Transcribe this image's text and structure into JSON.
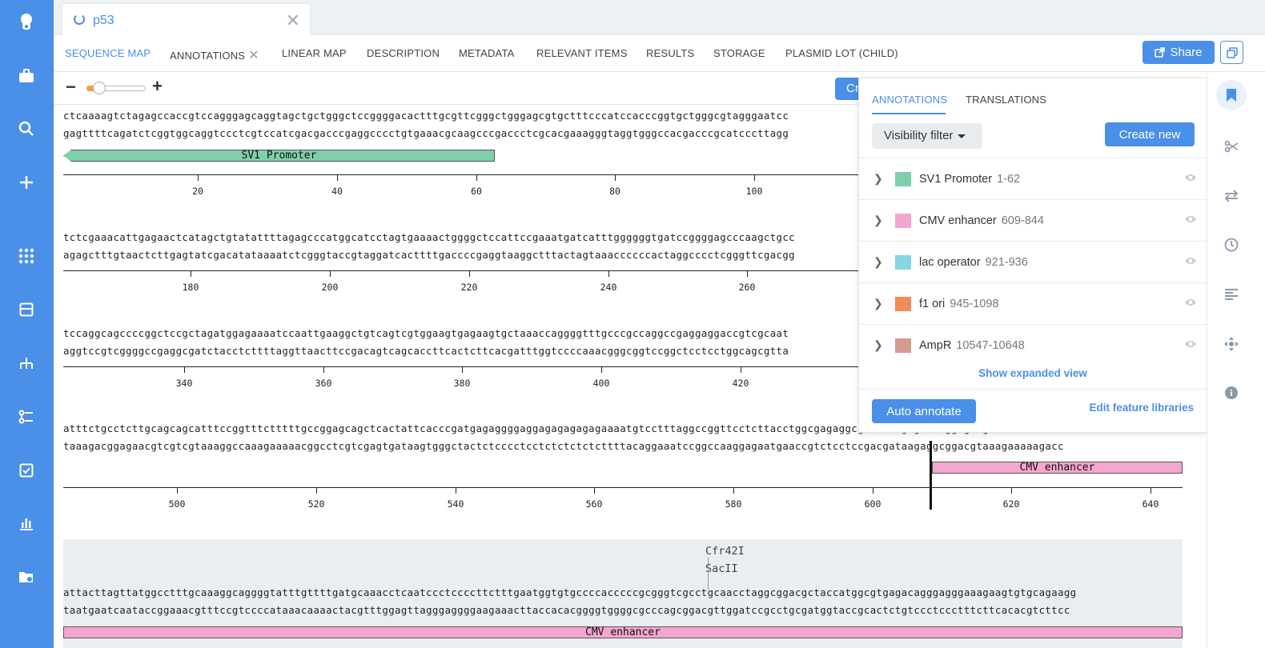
{
  "document": {
    "title": "p53"
  },
  "nav": {
    "tabs": [
      {
        "label": "SEQUENCE MAP",
        "active": true
      },
      {
        "label": "ANNOTATIONS",
        "closable": true
      },
      {
        "label": "LINEAR MAP"
      },
      {
        "label": "DESCRIPTION"
      },
      {
        "label": "METADATA"
      },
      {
        "label": "RELEVANT ITEMS"
      },
      {
        "label": "RESULTS"
      },
      {
        "label": "STORAGE"
      },
      {
        "label": "PLASMID LOT (CHILD)"
      }
    ],
    "share_label": "Share"
  },
  "toolbar": {
    "zoom_minus": "−",
    "zoom_plus": "+",
    "zoom_level": 0.15,
    "partial_button_label": "Cr"
  },
  "sequence": {
    "rows": [
      {
        "top": "ctcaaaagtctagagccaccgtccagggagcaggtagctgctgggctccggggacactttgcgttcgggctgggagcgtgctttcccatccacccggtgctgggcgtagggaatcc",
        "bottom": "gagttttcagatctcggtggcaggtccctcgtccatcgacgacccgaggcccctgtgaaacgcaagcccgaccctcgcacgaaagggtaggtgggccacgacccgcatcccttagg",
        "features": [
          {
            "label": "SV1 Promoter",
            "color": "#7fcfac"
          }
        ],
        "ticks": [
          "20",
          "40",
          "60",
          "80",
          "100"
        ]
      },
      {
        "top": "tctcgaaacattgagaactcatagctgtatattttagagcccatggcatcctagtgaaaactggggctccattccgaaatgatcatttggggggtgatccggggagcccaagctgcc",
        "bottom": "agagctttgtaactcttgagtatcgacatataaaatctcgggtaccgtaggatcacttttgaccccgaggtaaggctttactagtaaaccccccactaggcccctcgggttcgacgg",
        "ticks": [
          "180",
          "200",
          "220",
          "240",
          "260"
        ]
      },
      {
        "top": "tccaggcagccccggctccgctagatggagaaaatccaattgaaggctgtcagtcgtggaagtgagaagtgctaaaccaggggtttgcccgccaggccgaggaggaccgtcgcaat",
        "bottom": "aggtccgtcggggccgaggcgatctacctcttttaggttaacttccgacagtcagcaccttcactcttcacgatttggtccccaaacgggcggtccggctcctcctggcagcgtta",
        "ticks": [
          "340",
          "360",
          "380",
          "400",
          "420"
        ]
      },
      {
        "top": "atttctgcctcttgcagcagcatttccggtttctttttgccggagcagctcactattcacccgatgagaggggaggagagagagagaaaatgtcctttaggccggttcctcttacctggcgagaggcgctcctcgagcaaaggtgccgcc",
        "bottom": "taaagacggagaacgtcgtcgtaaaggccaaagaaaaacggcctcgtcgagtgataagtgggctactctcccctcctctctctctcttttacaggaaatccggccaaggagaatgaaccgtctcctccgacgataagaggcggacgtaaagaaaaagacc",
        "features": [
          {
            "label": "CMV enhancer",
            "color": "#f5a6d0"
          }
        ],
        "ticks": [
          "500",
          "520",
          "540",
          "560",
          "580",
          "600",
          "620",
          "640"
        ]
      },
      {
        "enzymes": [
          "Cfr42I",
          "SacII"
        ],
        "top": "attacttagttatggcctttgcaaaggcaggggtatttgttttgatgcaaacctcaatccctccccttctttgaatggtgtgccccacccccgcgggtcgcctgcaacctaggcggacgctaccatggcgtgagacagggagggaaagaagtgtgcagaagg",
        "bottom": "taatgaatcaataccggaaacgtttccgtccccataaacaaaactacgtttggagttagggaggggaagaaacttaccacacggggtggggcgcccagcggacgttggatccgcctgcgatggtaccgcactctgtccctccctttcttcacacgtcttcc",
        "features": [
          {
            "label": "CMV enhancer",
            "color": "#f5a6d0"
          }
        ]
      }
    ]
  },
  "annotations_panel": {
    "tabs": [
      {
        "label": "ANNOTATIONS",
        "active": true
      },
      {
        "label": "TRANSLATIONS"
      }
    ],
    "visibility_filter_label": "Visibility filter",
    "create_new_label": "Create new",
    "items": [
      {
        "name": "SV1 Promoter",
        "range": "1-62",
        "color": "#7fcfac"
      },
      {
        "name": "CMV enhancer",
        "range": "609-844",
        "color": "#f5a6d0"
      },
      {
        "name": "lac operator",
        "range": "921-936",
        "color": "#86d6e6"
      },
      {
        "name": "f1 ori",
        "range": "945-1098",
        "color": "#f28a5a"
      },
      {
        "name": "AmpR",
        "range": "10547-10648",
        "color": "#d49a8e"
      }
    ],
    "show_expanded_label": "Show expanded view",
    "auto_annotate_label": "Auto annotate",
    "edit_libraries_label": "Edit feature libraries"
  },
  "icons": {
    "left_rail": [
      "logo-icon",
      "briefcase-icon",
      "search-icon",
      "plus-icon",
      "apps-grid-icon",
      "layout-icon",
      "hierarchy-icon",
      "workflow-icon",
      "checklist-icon",
      "bar-chart-icon",
      "folder-settings-icon"
    ],
    "right_rail": [
      "bookmark-icon",
      "scissors-icon",
      "swap-icon",
      "history-icon",
      "align-left-icon",
      "move-icon",
      "info-icon"
    ]
  },
  "colors": {
    "accent": "#4a8fe8",
    "rail": "#4a8fe8"
  }
}
